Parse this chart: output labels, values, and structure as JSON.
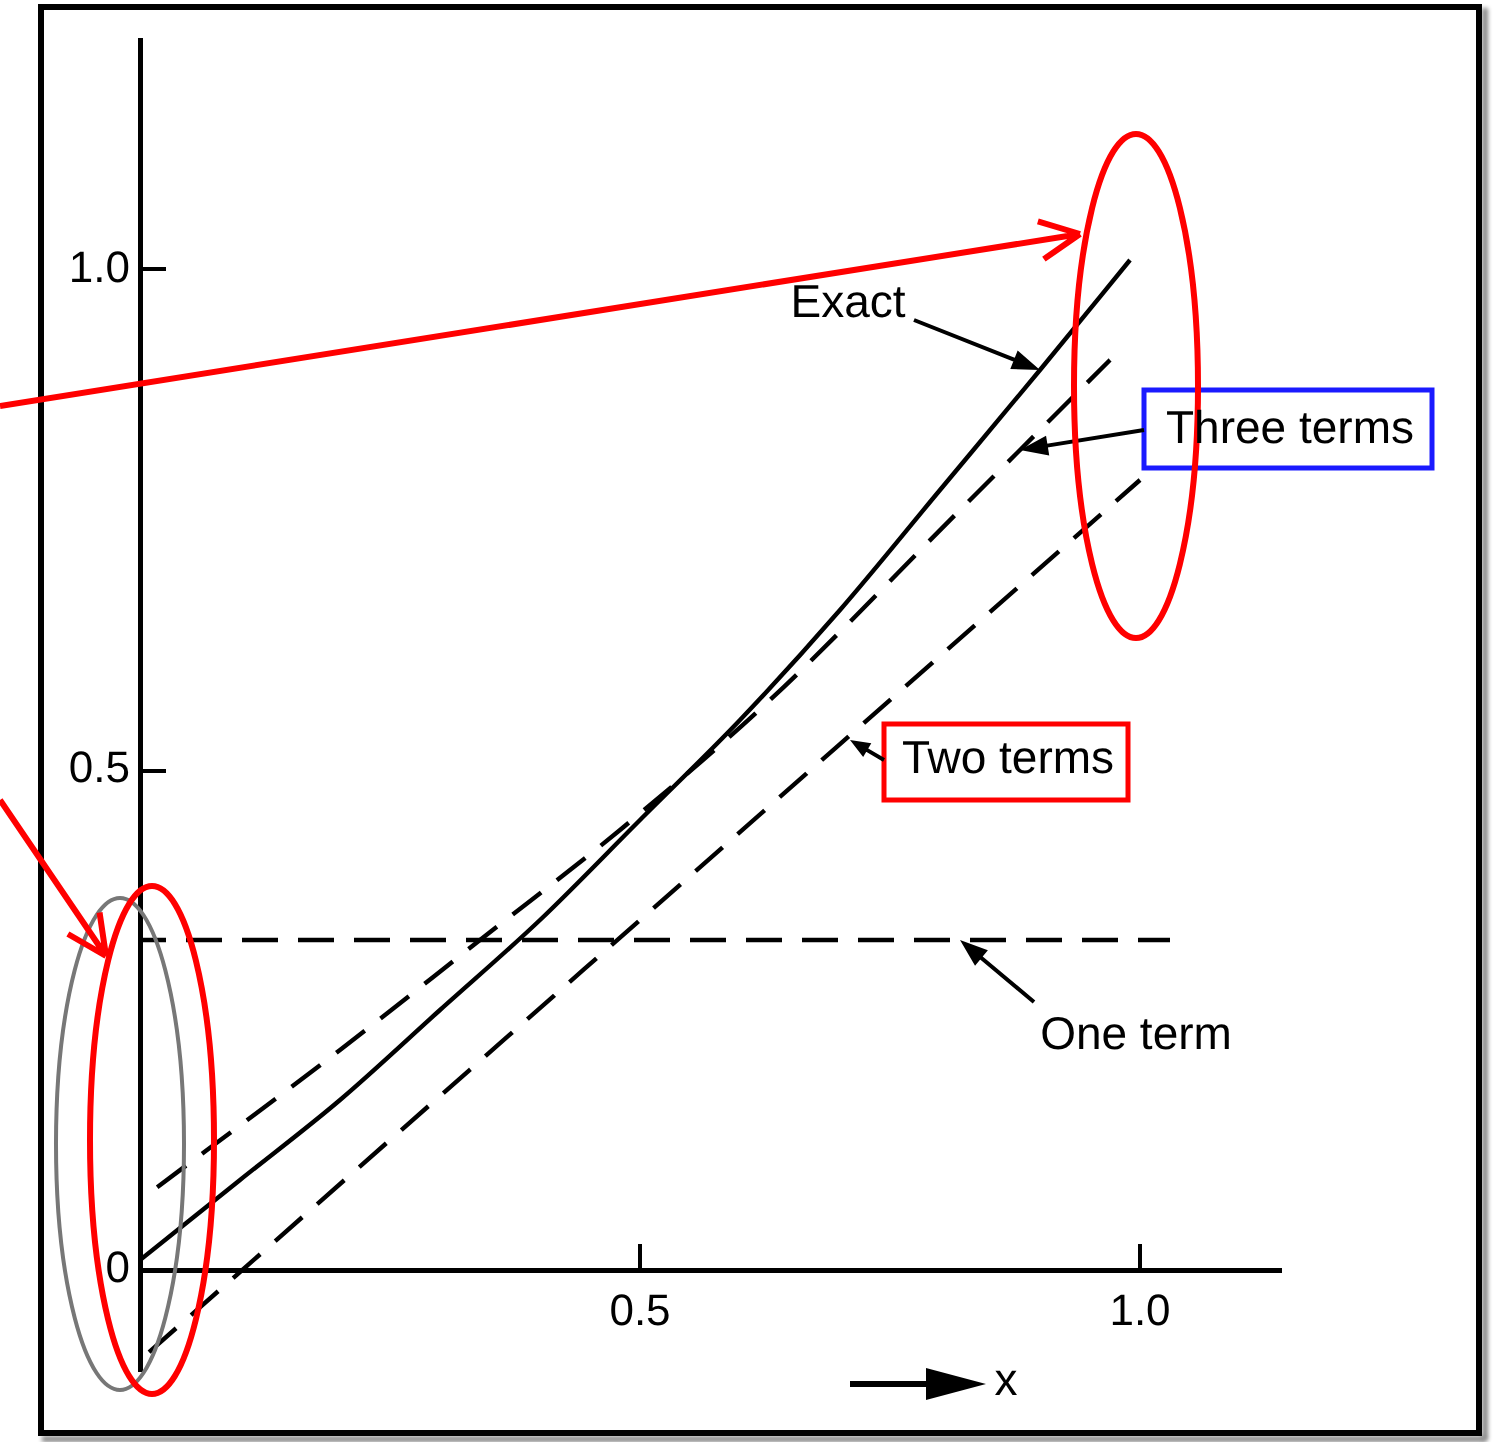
{
  "chart_data": {
    "type": "line",
    "xlabel": "x",
    "xlim": [
      0,
      1.14
    ],
    "ylim": [
      -0.1,
      1.23
    ],
    "xticks": [
      0.5,
      {
        "value": 1,
        "label": "1.0"
      }
    ],
    "yticks": [
      0,
      0.5,
      {
        "value": 1,
        "label": "1.0"
      }
    ],
    "series": [
      {
        "color": "#000000",
        "line_style": "solid",
        "x": [
          0,
          0.1,
          0.2,
          0.3,
          0.4,
          0.5,
          0.6,
          0.7,
          0.8,
          0.9,
          0.99
        ],
        "values": [
          0.01,
          0.09,
          0.17,
          0.26,
          0.35,
          0.45,
          0.55,
          0.66,
          0.78,
          0.9,
          1.01
        ]
      },
      {
        "color": "#000000",
        "line_style": "dashed",
        "x": [
          0,
          0.2,
          0.34,
          0.48,
          0.63,
          0.82,
          0.97
        ],
        "values": [
          0.07,
          0.22,
          0.33,
          0.44,
          0.57,
          0.76,
          0.91
        ]
      },
      {
        "color": "#000000",
        "line_style": "dashed",
        "x": [
          0,
          0.5,
          1.0
        ],
        "values": [
          -0.09,
          0.35,
          0.79
        ]
      },
      {
        "color": "#000000",
        "line_style": "dashed",
        "x": [
          0,
          1.03
        ],
        "values": [
          0.33,
          0.33
        ]
      }
    ],
    "annotations": [
      "Exact",
      "Three terms",
      {
        "text": "Two terms",
        "x": 0.71,
        "y": 0.53
      },
      {
        "text": "One term",
        "x": 0.82,
        "y": 0.33
      }
    ]
  }
}
